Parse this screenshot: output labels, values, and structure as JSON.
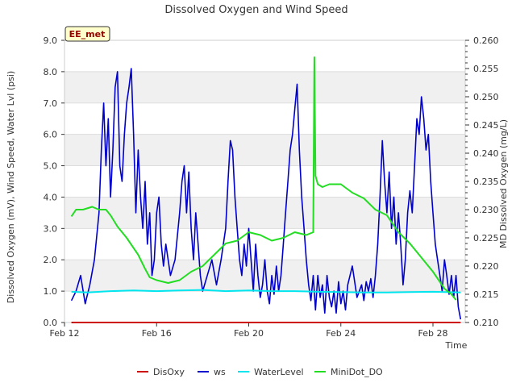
{
  "chart_data": {
    "type": "line",
    "title": "Dissolved Oxygen and Wind Speed",
    "xlabel": "Time",
    "ylabel_left": "Dissolved Oxygen (mV), Wind Speed, Water Lvl (psi)",
    "ylabel_right": "MD Dissolved Oxygen (mg/L)",
    "site_label": "EE_met",
    "x_range_days": [
      0.0,
      17.4
    ],
    "x_ticks": [
      {
        "label": "Feb 12",
        "day": 0
      },
      {
        "label": "Feb 16",
        "day": 4
      },
      {
        "label": "Feb 20",
        "day": 8
      },
      {
        "label": "Feb 24",
        "day": 12
      },
      {
        "label": "Feb 28",
        "day": 16
      }
    ],
    "ylim_left": [
      0,
      9
    ],
    "yticks_left": [
      "0.0",
      "1.0",
      "2.0",
      "3.0",
      "4.0",
      "5.0",
      "6.0",
      "7.0",
      "8.0",
      "9.0"
    ],
    "ylim_right": [
      0.21,
      0.26
    ],
    "yticks_right": [
      "0.210",
      "0.215",
      "0.220",
      "0.225",
      "0.230",
      "0.235",
      "0.240",
      "0.245",
      "0.250",
      "0.255",
      "0.260"
    ],
    "grid": "horizontal bands",
    "legend_placement": "bottom",
    "series": [
      {
        "name": "DisOxy",
        "color": "#cc0000",
        "axis": "left",
        "points": [
          [
            0.3,
            0.0
          ],
          [
            17.2,
            0.0
          ]
        ]
      },
      {
        "name": "ws",
        "color": "#0000cc",
        "axis": "left",
        "points": [
          [
            0.3,
            0.7
          ],
          [
            0.5,
            1.0
          ],
          [
            0.7,
            1.5
          ],
          [
            0.9,
            0.6
          ],
          [
            1.1,
            1.2
          ],
          [
            1.3,
            2.0
          ],
          [
            1.5,
            3.5
          ],
          [
            1.6,
            5.5
          ],
          [
            1.7,
            7.0
          ],
          [
            1.8,
            5.0
          ],
          [
            1.9,
            6.5
          ],
          [
            2.0,
            4.0
          ],
          [
            2.1,
            5.5
          ],
          [
            2.2,
            7.5
          ],
          [
            2.3,
            8.0
          ],
          [
            2.4,
            5.0
          ],
          [
            2.5,
            4.5
          ],
          [
            2.6,
            6.0
          ],
          [
            2.7,
            7.0
          ],
          [
            2.8,
            7.5
          ],
          [
            2.9,
            8.1
          ],
          [
            3.0,
            6.0
          ],
          [
            3.1,
            3.5
          ],
          [
            3.2,
            5.5
          ],
          [
            3.3,
            4.0
          ],
          [
            3.4,
            3.0
          ],
          [
            3.5,
            4.5
          ],
          [
            3.6,
            2.5
          ],
          [
            3.7,
            3.5
          ],
          [
            3.8,
            1.5
          ],
          [
            3.9,
            2.0
          ],
          [
            4.0,
            3.5
          ],
          [
            4.1,
            4.0
          ],
          [
            4.2,
            2.5
          ],
          [
            4.3,
            1.8
          ],
          [
            4.4,
            2.5
          ],
          [
            4.6,
            1.5
          ],
          [
            4.8,
            2.0
          ],
          [
            5.0,
            3.5
          ],
          [
            5.1,
            4.5
          ],
          [
            5.2,
            5.0
          ],
          [
            5.3,
            3.5
          ],
          [
            5.4,
            4.8
          ],
          [
            5.5,
            3.0
          ],
          [
            5.6,
            2.0
          ],
          [
            5.7,
            3.5
          ],
          [
            5.8,
            2.5
          ],
          [
            5.9,
            1.5
          ],
          [
            6.0,
            1.0
          ],
          [
            6.2,
            1.5
          ],
          [
            6.4,
            2.0
          ],
          [
            6.6,
            1.2
          ],
          [
            6.8,
            2.0
          ],
          [
            7.0,
            3.0
          ],
          [
            7.1,
            4.5
          ],
          [
            7.2,
            5.8
          ],
          [
            7.3,
            5.5
          ],
          [
            7.4,
            4.0
          ],
          [
            7.5,
            3.0
          ],
          [
            7.6,
            2.0
          ],
          [
            7.7,
            1.5
          ],
          [
            7.8,
            2.5
          ],
          [
            7.9,
            1.8
          ],
          [
            8.0,
            3.0
          ],
          [
            8.1,
            2.0
          ],
          [
            8.2,
            1.0
          ],
          [
            8.3,
            2.5
          ],
          [
            8.4,
            1.5
          ],
          [
            8.5,
            0.8
          ],
          [
            8.6,
            1.2
          ],
          [
            8.7,
            2.0
          ],
          [
            8.8,
            1.0
          ],
          [
            8.9,
            0.6
          ],
          [
            9.0,
            1.5
          ],
          [
            9.1,
            0.9
          ],
          [
            9.2,
            1.8
          ],
          [
            9.3,
            1.0
          ],
          [
            9.4,
            1.5
          ],
          [
            9.5,
            2.5
          ],
          [
            9.6,
            3.5
          ],
          [
            9.7,
            4.5
          ],
          [
            9.8,
            5.5
          ],
          [
            9.9,
            6.0
          ],
          [
            10.0,
            6.8
          ],
          [
            10.1,
            7.6
          ],
          [
            10.2,
            5.5
          ],
          [
            10.3,
            4.0
          ],
          [
            10.4,
            3.0
          ],
          [
            10.5,
            2.0
          ],
          [
            10.6,
            1.2
          ],
          [
            10.7,
            0.7
          ],
          [
            10.8,
            1.5
          ],
          [
            10.9,
            0.4
          ],
          [
            11.0,
            1.5
          ],
          [
            11.1,
            0.8
          ],
          [
            11.2,
            1.2
          ],
          [
            11.3,
            0.3
          ],
          [
            11.4,
            1.5
          ],
          [
            11.5,
            0.8
          ],
          [
            11.6,
            0.5
          ],
          [
            11.7,
            1.0
          ],
          [
            11.8,
            0.3
          ],
          [
            11.9,
            1.3
          ],
          [
            12.0,
            0.6
          ],
          [
            12.1,
            1.0
          ],
          [
            12.2,
            0.4
          ],
          [
            12.3,
            1.2
          ],
          [
            12.5,
            1.8
          ],
          [
            12.7,
            0.8
          ],
          [
            12.9,
            1.2
          ],
          [
            13.0,
            0.7
          ],
          [
            13.1,
            1.3
          ],
          [
            13.2,
            1.0
          ],
          [
            13.3,
            1.4
          ],
          [
            13.4,
            0.8
          ],
          [
            13.5,
            1.5
          ],
          [
            13.6,
            2.5
          ],
          [
            13.7,
            4.0
          ],
          [
            13.8,
            5.8
          ],
          [
            13.9,
            4.5
          ],
          [
            14.0,
            3.5
          ],
          [
            14.1,
            4.8
          ],
          [
            14.2,
            3.0
          ],
          [
            14.3,
            4.0
          ],
          [
            14.4,
            2.5
          ],
          [
            14.5,
            3.5
          ],
          [
            14.6,
            2.5
          ],
          [
            14.7,
            1.2
          ],
          [
            14.8,
            2.0
          ],
          [
            14.9,
            3.5
          ],
          [
            15.0,
            4.2
          ],
          [
            15.1,
            3.5
          ],
          [
            15.2,
            5.0
          ],
          [
            15.3,
            6.5
          ],
          [
            15.4,
            6.0
          ],
          [
            15.5,
            7.2
          ],
          [
            15.6,
            6.5
          ],
          [
            15.7,
            5.5
          ],
          [
            15.8,
            6.0
          ],
          [
            15.9,
            4.5
          ],
          [
            16.0,
            3.5
          ],
          [
            16.1,
            2.5
          ],
          [
            16.2,
            2.0
          ],
          [
            16.3,
            1.5
          ],
          [
            16.4,
            1.0
          ],
          [
            16.5,
            2.0
          ],
          [
            16.6,
            1.5
          ],
          [
            16.7,
            0.9
          ],
          [
            16.8,
            1.5
          ],
          [
            16.9,
            0.8
          ],
          [
            17.0,
            1.5
          ],
          [
            17.1,
            0.5
          ],
          [
            17.2,
            0.1
          ]
        ]
      },
      {
        "name": "WaterLevel",
        "color": "#00e5ee",
        "axis": "left",
        "points": [
          [
            0.3,
            0.98
          ],
          [
            1.0,
            0.96
          ],
          [
            2.0,
            1.0
          ],
          [
            3.0,
            1.02
          ],
          [
            4.0,
            1.0
          ],
          [
            5.0,
            1.02
          ],
          [
            6.0,
            1.04
          ],
          [
            7.0,
            1.0
          ],
          [
            8.0,
            1.02
          ],
          [
            9.0,
            1.0
          ],
          [
            10.0,
            1.0
          ],
          [
            11.0,
            0.98
          ],
          [
            12.0,
            0.97
          ],
          [
            13.0,
            0.96
          ],
          [
            14.0,
            0.96
          ],
          [
            15.0,
            0.97
          ],
          [
            16.0,
            0.98
          ],
          [
            17.2,
            0.96
          ]
        ]
      },
      {
        "name": "MiniDot_DO",
        "color": "#22dd22",
        "axis": "right",
        "points": [
          [
            0.3,
            0.2288
          ],
          [
            0.5,
            0.23
          ],
          [
            0.8,
            0.23
          ],
          [
            1.2,
            0.2305
          ],
          [
            1.5,
            0.23
          ],
          [
            1.8,
            0.23
          ],
          [
            2.0,
            0.229
          ],
          [
            2.3,
            0.227
          ],
          [
            2.7,
            0.225
          ],
          [
            3.2,
            0.222
          ],
          [
            3.5,
            0.2195
          ],
          [
            3.7,
            0.218
          ],
          [
            4.0,
            0.2175
          ],
          [
            4.5,
            0.217
          ],
          [
            5.0,
            0.2175
          ],
          [
            5.5,
            0.219
          ],
          [
            6.0,
            0.22
          ],
          [
            6.5,
            0.222
          ],
          [
            7.0,
            0.224
          ],
          [
            7.5,
            0.2245
          ],
          [
            8.0,
            0.226
          ],
          [
            8.5,
            0.2255
          ],
          [
            9.0,
            0.2245
          ],
          [
            9.5,
            0.225
          ],
          [
            10.0,
            0.226
          ],
          [
            10.5,
            0.2255
          ],
          [
            10.8,
            0.226
          ],
          [
            10.85,
            0.257
          ],
          [
            10.9,
            0.236
          ],
          [
            11.0,
            0.2345
          ],
          [
            11.2,
            0.234
          ],
          [
            11.5,
            0.2345
          ],
          [
            12.0,
            0.2345
          ],
          [
            12.5,
            0.233
          ],
          [
            13.0,
            0.232
          ],
          [
            13.5,
            0.23
          ],
          [
            14.0,
            0.229
          ],
          [
            14.5,
            0.226
          ],
          [
            15.0,
            0.224
          ],
          [
            15.5,
            0.2215
          ],
          [
            16.0,
            0.219
          ],
          [
            16.5,
            0.216
          ],
          [
            16.8,
            0.215
          ],
          [
            17.0,
            0.214
          ]
        ]
      }
    ]
  }
}
